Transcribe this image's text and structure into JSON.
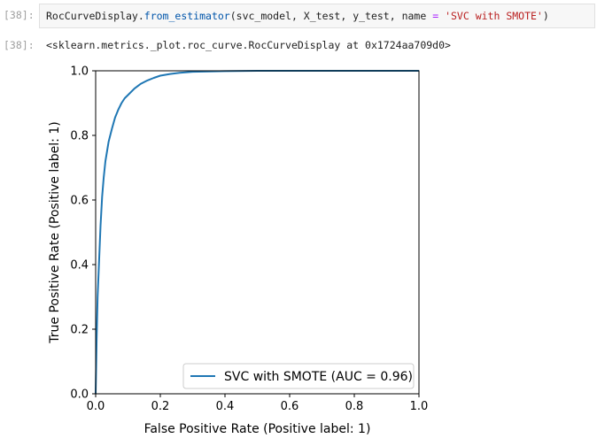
{
  "cell_in": {
    "prompt": "[38]:",
    "code_tokens": [
      {
        "text": "RocCurveDisplay.",
        "style": "plain"
      },
      {
        "text": "from_estimator",
        "style": "fn"
      },
      {
        "text": "(svc_model, X_test, y_test, name ",
        "style": "plain"
      },
      {
        "text": "=",
        "style": "op"
      },
      {
        "text": " ",
        "style": "plain"
      },
      {
        "text": "'SVC with SMOTE'",
        "style": "str"
      },
      {
        "text": ")",
        "style": "plain"
      }
    ]
  },
  "cell_out": {
    "prompt": "[38]:",
    "text": "<sklearn.metrics._plot.roc_curve.RocCurveDisplay at 0x1724aa709d0>"
  },
  "chart_data": {
    "type": "line",
    "xlabel": "False Positive Rate (Positive label: 1)",
    "ylabel": "True Positive Rate (Positive label: 1)",
    "xlim": [
      0,
      1
    ],
    "ylim": [
      0,
      1
    ],
    "xticks": [
      "0.0",
      "0.2",
      "0.4",
      "0.6",
      "0.8",
      "1.0"
    ],
    "yticks": [
      "0.0",
      "0.2",
      "0.4",
      "0.6",
      "0.8",
      "1.0"
    ],
    "grid": false,
    "legend_position": "lower-right",
    "colors": {
      "series": "#1f77b4"
    },
    "series": [
      {
        "name": "SVC with SMOTE (AUC = 0.96)",
        "x": [
          0.0,
          0.003,
          0.006,
          0.01,
          0.015,
          0.02,
          0.025,
          0.03,
          0.04,
          0.05,
          0.06,
          0.07,
          0.08,
          0.09,
          0.1,
          0.12,
          0.14,
          0.16,
          0.18,
          0.2,
          0.23,
          0.26,
          0.3,
          0.35,
          0.4,
          0.5,
          0.6,
          0.8,
          1.0
        ],
        "y": [
          0.0,
          0.17,
          0.3,
          0.4,
          0.52,
          0.61,
          0.67,
          0.72,
          0.78,
          0.82,
          0.855,
          0.88,
          0.9,
          0.915,
          0.925,
          0.945,
          0.96,
          0.97,
          0.978,
          0.985,
          0.99,
          0.994,
          0.997,
          0.998,
          0.999,
          1.0,
          1.0,
          1.0,
          1.0
        ]
      }
    ]
  }
}
